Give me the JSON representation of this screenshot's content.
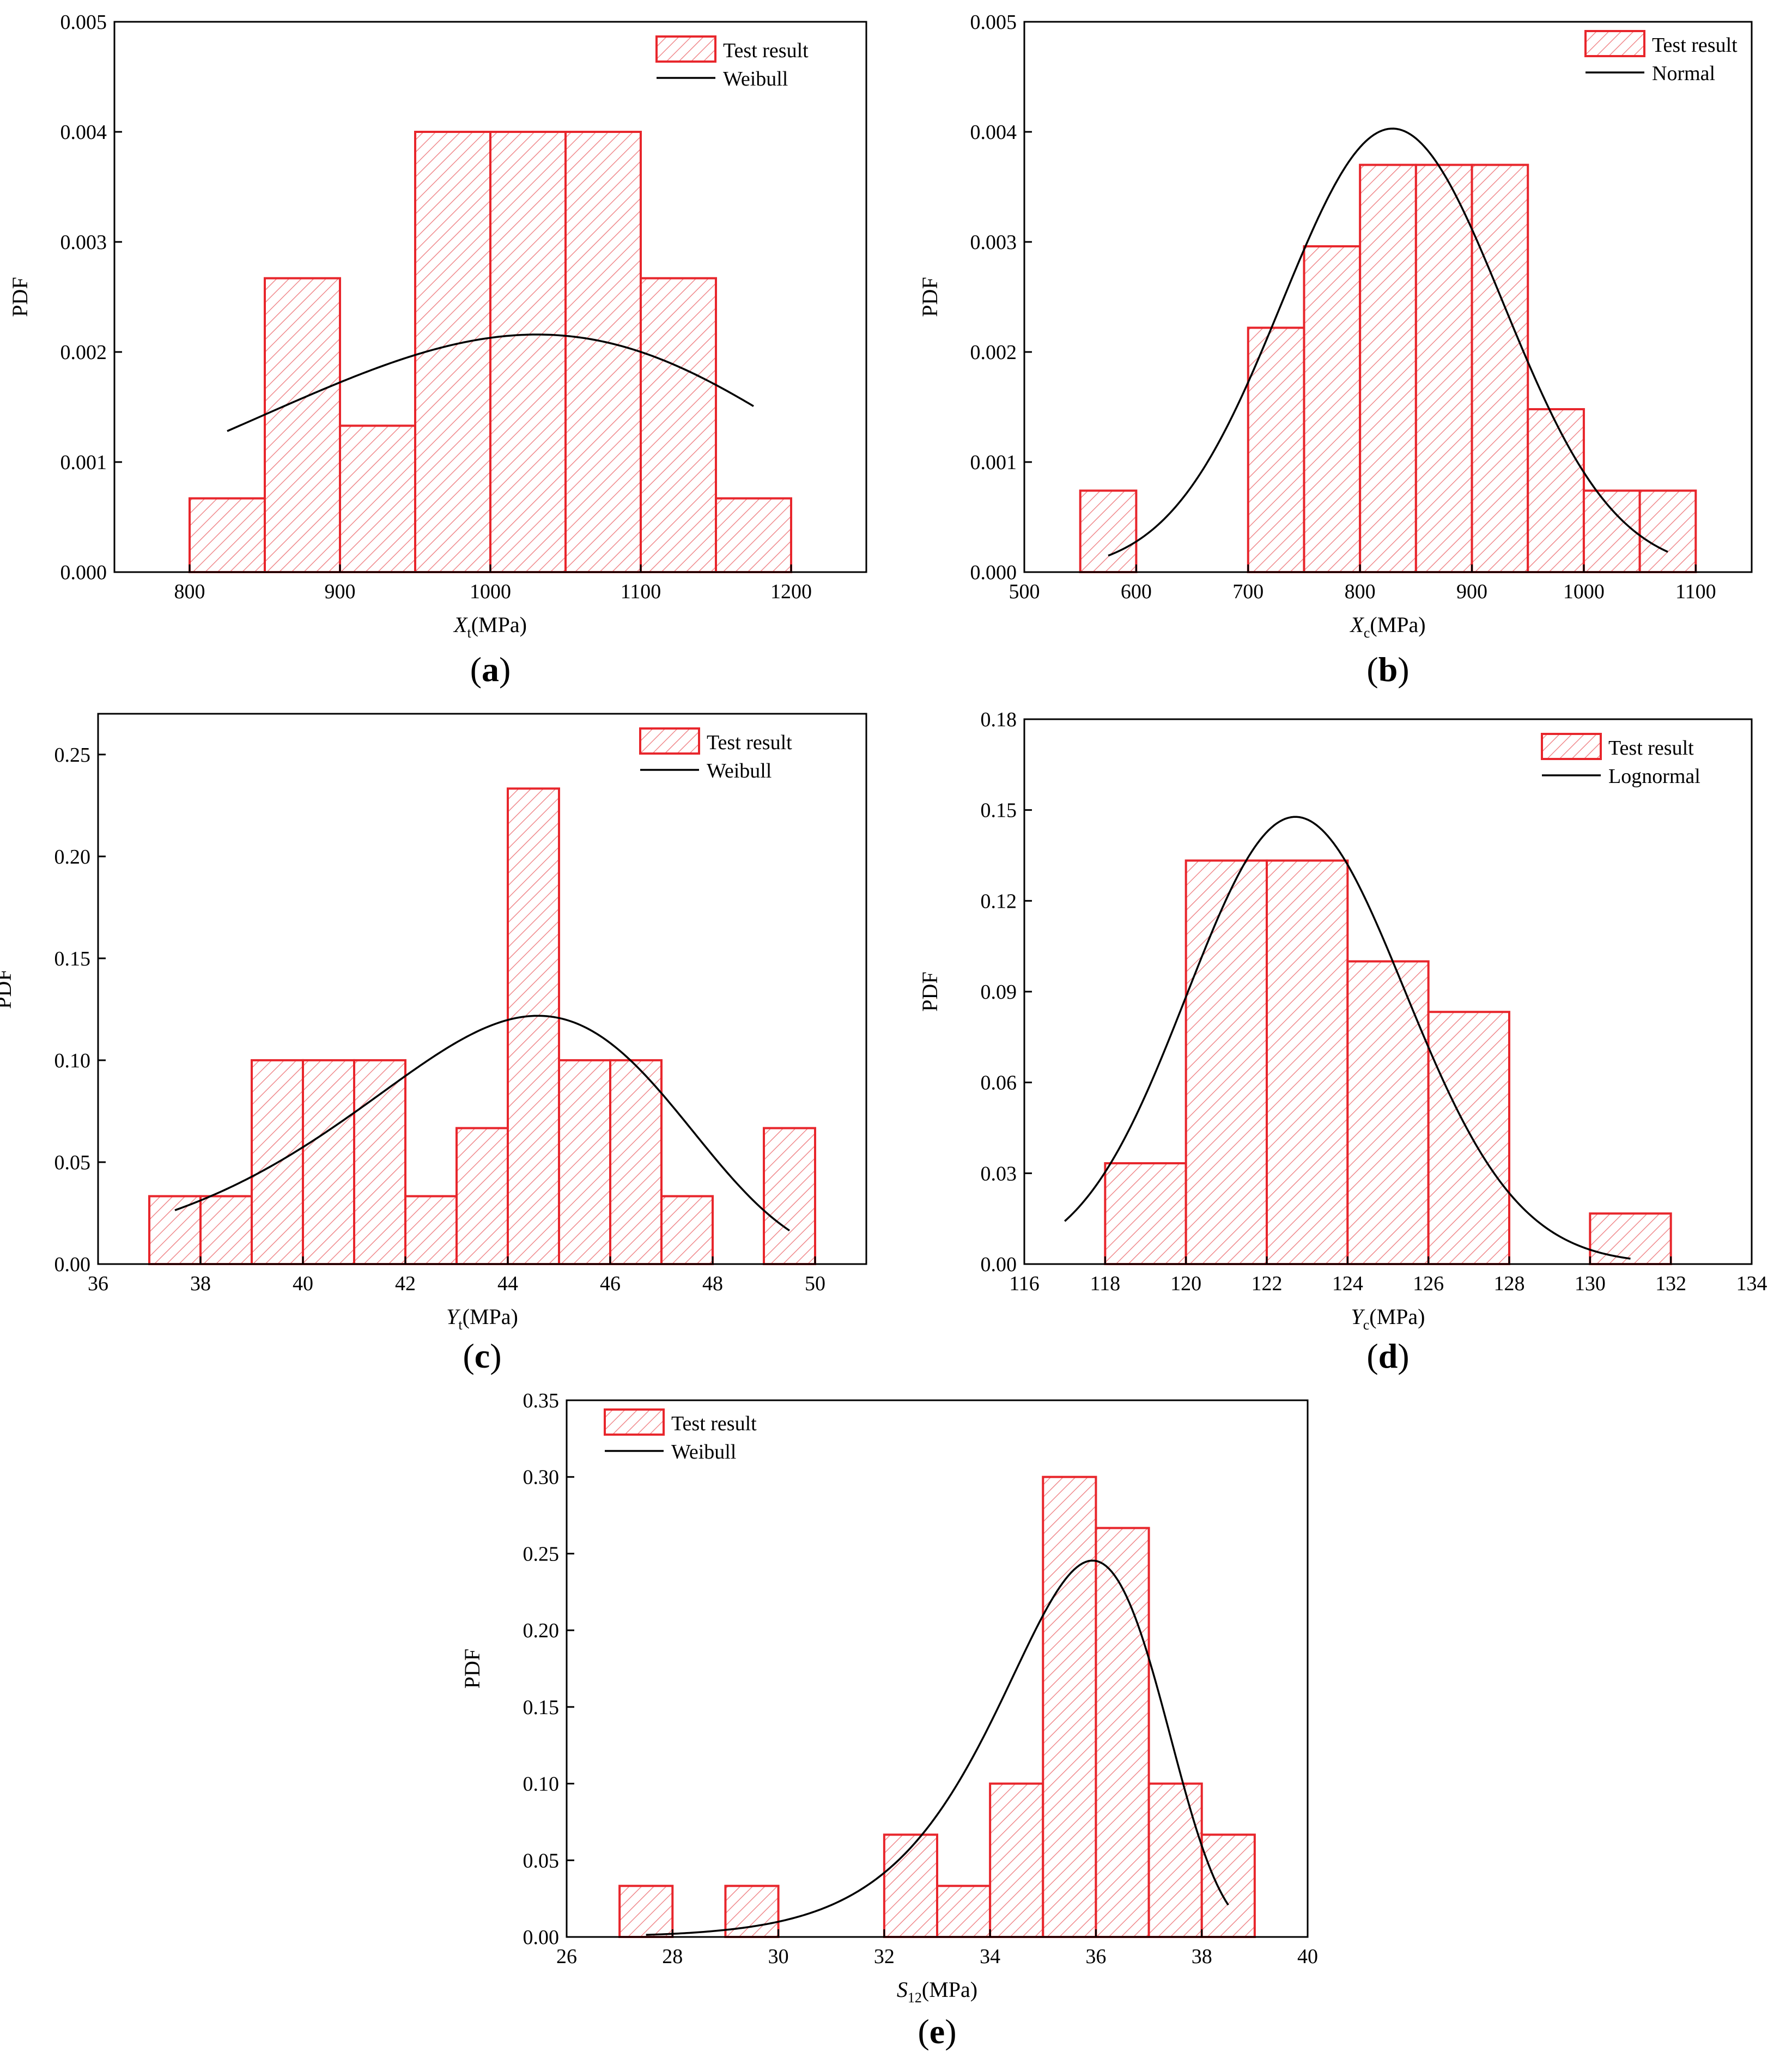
{
  "colors": {
    "bar_stroke": "#e8262c",
    "hatch": "#f08a8d",
    "curve": "#000000",
    "axis": "#000000"
  },
  "chart_data": [
    {
      "id": "a",
      "panel_label": "a",
      "type": "bar",
      "title": "",
      "xlabel_main": "X",
      "xlabel_sub": "t",
      "xlabel_unit": "(MPa)",
      "ylabel": "PDF",
      "xlim": [
        750,
        1250
      ],
      "ylim": [
        0,
        0.005
      ],
      "xticks": [
        800,
        900,
        1000,
        1100,
        1200
      ],
      "xtick_labels": [
        "800",
        "900",
        "1000",
        "1100",
        "1200"
      ],
      "yticks": [
        0,
        0.001,
        0.002,
        0.003,
        0.004,
        0.005
      ],
      "ytick_labels": [
        "0.000",
        "0.001",
        "0.002",
        "0.003",
        "0.004",
        "0.005"
      ],
      "bin_width": 50,
      "bins": [
        {
          "x0": 800,
          "value": 0.00067
        },
        {
          "x0": 850,
          "value": 0.00267
        },
        {
          "x0": 900,
          "value": 0.00133
        },
        {
          "x0": 950,
          "value": 0.004
        },
        {
          "x0": 1000,
          "value": 0.004
        },
        {
          "x0": 1050,
          "value": 0.004
        },
        {
          "x0": 1100,
          "value": 0.00267
        },
        {
          "x0": 1150,
          "value": 0.00067
        }
      ],
      "series": [
        {
          "name": "Test result",
          "kind": "histogram"
        },
        {
          "name": "Weibull",
          "kind": "line",
          "dist": "weibull",
          "shape": 6.14,
          "scale": 1061.3,
          "x_start": 825,
          "x_end": 1175
        }
      ],
      "legend_position": "top-right"
    },
    {
      "id": "b",
      "panel_label": "b",
      "type": "bar",
      "title": "",
      "xlabel_main": "X",
      "xlabel_sub": "c",
      "xlabel_unit": "(MPa)",
      "ylabel": "PDF",
      "xlim": [
        500,
        1150
      ],
      "ylim": [
        0,
        0.005
      ],
      "xticks": [
        500,
        600,
        700,
        800,
        900,
        1000,
        1100
      ],
      "xtick_labels": [
        "500",
        "600",
        "700",
        "800",
        "900",
        "1000",
        "1100"
      ],
      "yticks": [
        0,
        0.001,
        0.002,
        0.003,
        0.004,
        0.005
      ],
      "ytick_labels": [
        "0.000",
        "0.001",
        "0.002",
        "0.003",
        "0.004",
        "0.005"
      ],
      "bin_width": 50,
      "bins": [
        {
          "x0": 550,
          "value": 0.00074
        },
        {
          "x0": 700,
          "value": 0.00222
        },
        {
          "x0": 750,
          "value": 0.00296
        },
        {
          "x0": 800,
          "value": 0.0037
        },
        {
          "x0": 850,
          "value": 0.0037
        },
        {
          "x0": 900,
          "value": 0.0037
        },
        {
          "x0": 950,
          "value": 0.00148
        },
        {
          "x0": 1000,
          "value": 0.00074
        },
        {
          "x0": 1050,
          "value": 0.00074
        }
      ],
      "series": [
        {
          "name": "Test result",
          "kind": "histogram"
        },
        {
          "name": "Normal",
          "kind": "line",
          "dist": "normal",
          "mean": 829,
          "sd": 99,
          "x_start": 575,
          "x_end": 1075
        }
      ],
      "legend_position": "top-right"
    },
    {
      "id": "c",
      "panel_label": "c",
      "type": "bar",
      "title": "",
      "xlabel_main": "Y",
      "xlabel_sub": "t",
      "xlabel_unit": "(MPa)",
      "ylabel": "PDF",
      "xlim": [
        36,
        51
      ],
      "ylim": [
        0,
        0.27
      ],
      "xticks": [
        36,
        38,
        40,
        42,
        44,
        46,
        48,
        50
      ],
      "xtick_labels": [
        "36",
        "38",
        "40",
        "42",
        "44",
        "46",
        "48",
        "50"
      ],
      "yticks": [
        0,
        0.05,
        0.1,
        0.15,
        0.2,
        0.25
      ],
      "ytick_labels": [
        "0.00",
        "0.05",
        "0.10",
        "0.15",
        "0.20",
        "0.25"
      ],
      "bin_width": 1,
      "bins": [
        {
          "x0": 37,
          "value": 0.0333
        },
        {
          "x0": 38,
          "value": 0.0333
        },
        {
          "x0": 39,
          "value": 0.1
        },
        {
          "x0": 40,
          "value": 0.1
        },
        {
          "x0": 41,
          "value": 0.1
        },
        {
          "x0": 42,
          "value": 0.0333
        },
        {
          "x0": 43,
          "value": 0.0667
        },
        {
          "x0": 44,
          "value": 0.2333
        },
        {
          "x0": 45,
          "value": 0.1
        },
        {
          "x0": 46,
          "value": 0.1
        },
        {
          "x0": 47,
          "value": 0.0333
        },
        {
          "x0": 49,
          "value": 0.0667
        }
      ],
      "series": [
        {
          "name": "Test result",
          "kind": "histogram"
        },
        {
          "name": "Weibull",
          "kind": "line",
          "dist": "weibull",
          "shape": 14.8,
          "scale": 44.8,
          "x_start": 37.5,
          "x_end": 49.5
        }
      ],
      "legend_position": "top-right"
    },
    {
      "id": "d",
      "panel_label": "d",
      "type": "bar",
      "title": "",
      "xlabel_main": "Y",
      "xlabel_sub": "c",
      "xlabel_unit": "(MPa)",
      "ylabel": "PDF",
      "xlim": [
        116,
        134
      ],
      "ylim": [
        0,
        0.18
      ],
      "xticks": [
        116,
        118,
        120,
        122,
        124,
        126,
        128,
        130,
        132,
        134
      ],
      "xtick_labels": [
        "116",
        "118",
        "120",
        "122",
        "124",
        "126",
        "128",
        "130",
        "132",
        "134"
      ],
      "yticks": [
        0,
        0.03,
        0.06,
        0.09,
        0.12,
        0.15,
        0.18
      ],
      "ytick_labels": [
        "0.00",
        "0.03",
        "0.06",
        "0.09",
        "0.12",
        "0.15",
        "0.18"
      ],
      "bin_width": 2,
      "bins": [
        {
          "x0": 118,
          "value": 0.0333
        },
        {
          "x0": 120,
          "value": 0.1333
        },
        {
          "x0": 122,
          "value": 0.1333
        },
        {
          "x0": 124,
          "value": 0.1
        },
        {
          "x0": 126,
          "value": 0.0833
        },
        {
          "x0": 130,
          "value": 0.0167
        }
      ],
      "series": [
        {
          "name": "Test result",
          "kind": "histogram"
        },
        {
          "name": "Lognormal",
          "kind": "line",
          "dist": "lognormal",
          "mu": 4.8103,
          "sigma": 0.022,
          "x_start": 117,
          "x_end": 131
        }
      ],
      "legend_position": "top-right"
    },
    {
      "id": "e",
      "panel_label": "e",
      "type": "bar",
      "title": "",
      "xlabel_main": "S",
      "xlabel_sub": "12",
      "xlabel_unit": "(MPa)",
      "ylabel": "PDF",
      "xlim": [
        26,
        40
      ],
      "ylim": [
        0,
        0.35
      ],
      "xticks": [
        26,
        28,
        30,
        32,
        34,
        36,
        38,
        40
      ],
      "xtick_labels": [
        "26",
        "28",
        "30",
        "32",
        "34",
        "36",
        "38",
        "40"
      ],
      "yticks": [
        0,
        0.05,
        0.1,
        0.15,
        0.2,
        0.25,
        0.3,
        0.35
      ],
      "ytick_labels": [
        "0.00",
        "0.05",
        "0.10",
        "0.15",
        "0.20",
        "0.25",
        "0.30",
        "0.35"
      ],
      "bin_width": 1,
      "bins": [
        {
          "x0": 27,
          "value": 0.0333
        },
        {
          "x0": 29,
          "value": 0.0333
        },
        {
          "x0": 32,
          "value": 0.0667
        },
        {
          "x0": 33,
          "value": 0.0333
        },
        {
          "x0": 34,
          "value": 0.1
        },
        {
          "x0": 35,
          "value": 0.3
        },
        {
          "x0": 36,
          "value": 0.2667
        },
        {
          "x0": 37,
          "value": 0.1
        },
        {
          "x0": 38,
          "value": 0.0667
        }
      ],
      "series": [
        {
          "name": "Test result",
          "kind": "histogram"
        },
        {
          "name": "Weibull",
          "kind": "line",
          "dist": "weibull",
          "shape": 24.0,
          "scale": 36.0,
          "x_start": 27.5,
          "x_end": 38.5
        }
      ],
      "legend_position": "top-left"
    }
  ]
}
